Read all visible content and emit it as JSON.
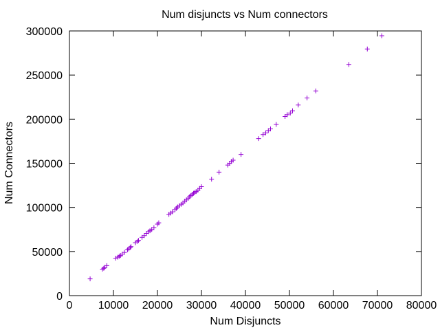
{
  "chart_data": {
    "type": "scatter",
    "title": "Num disjuncts vs Num connectors",
    "xlabel": "Num Disjuncts",
    "ylabel": "Num Connectors",
    "xlim": [
      0,
      80000
    ],
    "ylim": [
      0,
      300000
    ],
    "xticks": [
      0,
      10000,
      20000,
      30000,
      40000,
      50000,
      60000,
      70000,
      80000
    ],
    "yticks": [
      0,
      50000,
      100000,
      150000,
      200000,
      250000,
      300000
    ],
    "xtick_labels": [
      "0",
      "10000",
      "20000",
      "30000",
      "40000",
      "50000",
      "60000",
      "70000",
      "80000"
    ],
    "ytick_labels": [
      "0",
      "50000",
      "100000",
      "150000",
      "200000",
      "250000",
      "300000"
    ],
    "grid": false,
    "marker": "+",
    "color": "#9400d3",
    "series": [
      {
        "points": [
          [
            4700,
            19000
          ],
          [
            7500,
            30000
          ],
          [
            7800,
            31000
          ],
          [
            8000,
            32000
          ],
          [
            8500,
            34000
          ],
          [
            10500,
            42500
          ],
          [
            11000,
            43500
          ],
          [
            11300,
            44500
          ],
          [
            11600,
            45500
          ],
          [
            12000,
            47000
          ],
          [
            12500,
            49000
          ],
          [
            13200,
            52000
          ],
          [
            13500,
            53000
          ],
          [
            13800,
            54500
          ],
          [
            14000,
            55500
          ],
          [
            15000,
            60000
          ],
          [
            15400,
            61500
          ],
          [
            15700,
            62500
          ],
          [
            16500,
            66000
          ],
          [
            17000,
            68000
          ],
          [
            17500,
            70500
          ],
          [
            18000,
            72500
          ],
          [
            18300,
            73500
          ],
          [
            18700,
            75000
          ],
          [
            19200,
            77000
          ],
          [
            20000,
            81000
          ],
          [
            20300,
            82500
          ],
          [
            22600,
            92000
          ],
          [
            23000,
            93500
          ],
          [
            23400,
            95000
          ],
          [
            24000,
            97500
          ],
          [
            24300,
            99000
          ],
          [
            24600,
            100500
          ],
          [
            25000,
            102000
          ],
          [
            25400,
            103500
          ],
          [
            25800,
            105000
          ],
          [
            26200,
            107000
          ],
          [
            26600,
            108500
          ],
          [
            27000,
            110500
          ],
          [
            27300,
            112000
          ],
          [
            27600,
            113500
          ],
          [
            27900,
            114500
          ],
          [
            28200,
            116000
          ],
          [
            28500,
            117000
          ],
          [
            28800,
            118000
          ],
          [
            29200,
            119500
          ],
          [
            29600,
            121500
          ],
          [
            30000,
            123500
          ],
          [
            32300,
            132000
          ],
          [
            34000,
            140000
          ],
          [
            36000,
            148000
          ],
          [
            36400,
            150000
          ],
          [
            36800,
            152000
          ],
          [
            37200,
            153500
          ],
          [
            39000,
            160000
          ],
          [
            43000,
            178000
          ],
          [
            44000,
            182500
          ],
          [
            44600,
            184500
          ],
          [
            45200,
            187000
          ],
          [
            45700,
            189000
          ],
          [
            47000,
            194000
          ],
          [
            49000,
            203000
          ],
          [
            49500,
            205000
          ],
          [
            50200,
            207000
          ],
          [
            50700,
            209500
          ],
          [
            52000,
            216000
          ],
          [
            54000,
            224000
          ],
          [
            56000,
            232000
          ],
          [
            63500,
            262000
          ],
          [
            67700,
            279500
          ],
          [
            71000,
            294500
          ]
        ]
      }
    ]
  }
}
